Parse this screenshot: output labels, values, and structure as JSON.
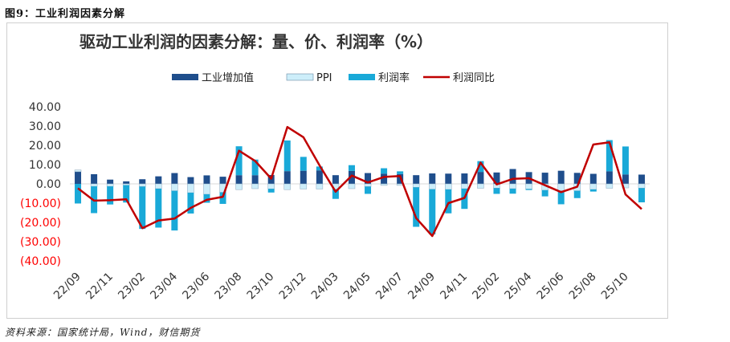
{
  "figure_label": "图9：工业利润因素分解",
  "source": "资料来源：国家统计局，Wind，财信期货",
  "colors": {
    "industry": "#1f4e8c",
    "ppi": "#cdeefa",
    "profit_rate": "#19a9d8",
    "profit_yoy": "#c00000",
    "negative_tick": "#ff0000",
    "positive_tick": "#333333"
  },
  "chart_data": {
    "type": "bar",
    "title": "驱动工业利润的因素分解：量、价、利润率（%）",
    "legend": [
      "工业增加值",
      "PPI",
      "利润率",
      "利润同比"
    ],
    "legend_position": "top",
    "grid": false,
    "ylim": [
      -40,
      40
    ],
    "yticks": [
      "40.00",
      "30.00",
      "20.00",
      "10.00",
      "0.00",
      "(10.00)",
      "(20.00)",
      "(30.00)",
      "(40.00)"
    ],
    "categories": [
      "22/09",
      "22/10",
      "22/11",
      "22/12",
      "23/02",
      "23/03",
      "23/04",
      "23/05",
      "23/06",
      "23/07",
      "23/08",
      "23/09",
      "23/10",
      "23/11",
      "23/12",
      "24/02",
      "24/03",
      "24/04",
      "24/05",
      "24/06",
      "24/07",
      "24/08",
      "24/09",
      "24/10",
      "24/11",
      "24/12",
      "25/02",
      "25/03",
      "25/04",
      "25/05",
      "25/06",
      "25/07",
      "25/08",
      "25/09",
      "25/10",
      "25/11"
    ],
    "xtick_labels": [
      "22/09",
      "22/11",
      "23/02",
      "23/04",
      "23/06",
      "23/08",
      "23/10",
      "23/12",
      "24/03",
      "24/05",
      "24/07",
      "24/09",
      "24/11",
      "25/02",
      "25/04",
      "25/06",
      "25/08",
      "25/10"
    ],
    "series": [
      {
        "name": "工业增加值",
        "kind": "stack",
        "values": [
          6.3,
          5.0,
          2.2,
          1.3,
          2.4,
          3.9,
          5.6,
          3.5,
          4.4,
          3.7,
          4.5,
          4.5,
          4.6,
          6.6,
          6.8,
          7.0,
          4.5,
          6.7,
          5.6,
          5.3,
          5.1,
          4.5,
          5.4,
          5.3,
          5.4,
          6.2,
          5.9,
          7.7,
          6.1,
          5.8,
          6.8,
          5.7,
          5.2,
          6.5,
          4.9,
          4.8
        ]
      },
      {
        "name": "PPI",
        "kind": "stack",
        "values": [
          0.9,
          -1.3,
          -1.3,
          -0.7,
          -1.4,
          -2.5,
          -3.6,
          -4.6,
          -5.4,
          -4.4,
          -3.0,
          -2.5,
          -2.6,
          -3.0,
          -2.7,
          -2.7,
          -2.8,
          -2.5,
          -1.4,
          -0.8,
          -0.8,
          -1.8,
          -2.8,
          -2.9,
          -2.5,
          -2.3,
          -2.2,
          -2.5,
          -2.7,
          -3.3,
          -3.6,
          -3.6,
          -2.9,
          -2.3,
          -2.1,
          -2.2
        ]
      },
      {
        "name": "利润率",
        "kind": "stack",
        "values": [
          -10.2,
          -13.9,
          -9.4,
          -9.0,
          -22.0,
          -20.2,
          -20.6,
          -10.8,
          -4.4,
          -6.0,
          15.0,
          8.1,
          -1.9,
          15.9,
          7.2,
          2.0,
          -5.0,
          3.0,
          -3.8,
          2.8,
          1.4,
          -20.5,
          -23.4,
          -12.4,
          -10.5,
          5.6,
          -3.0,
          -2.6,
          -0.5,
          -3.2,
          -7.0,
          -3.8,
          -1.1,
          16.2,
          14.5,
          -7.4
        ]
      },
      {
        "name": "利润同比",
        "kind": "line",
        "values": [
          -2.3,
          -8.7,
          -8.5,
          -8.0,
          -23.0,
          -19.0,
          -18.0,
          -12.5,
          -8.3,
          -6.7,
          17.2,
          11.9,
          2.7,
          29.5,
          24.2,
          9.6,
          -4.1,
          4.3,
          0.7,
          3.6,
          4.1,
          -17.8,
          -27.1,
          -10.0,
          -7.3,
          11.0,
          -0.3,
          2.6,
          2.9,
          -0.7,
          -4.3,
          -1.5,
          20.4,
          21.6,
          -5.5,
          -13.1
        ]
      }
    ]
  }
}
